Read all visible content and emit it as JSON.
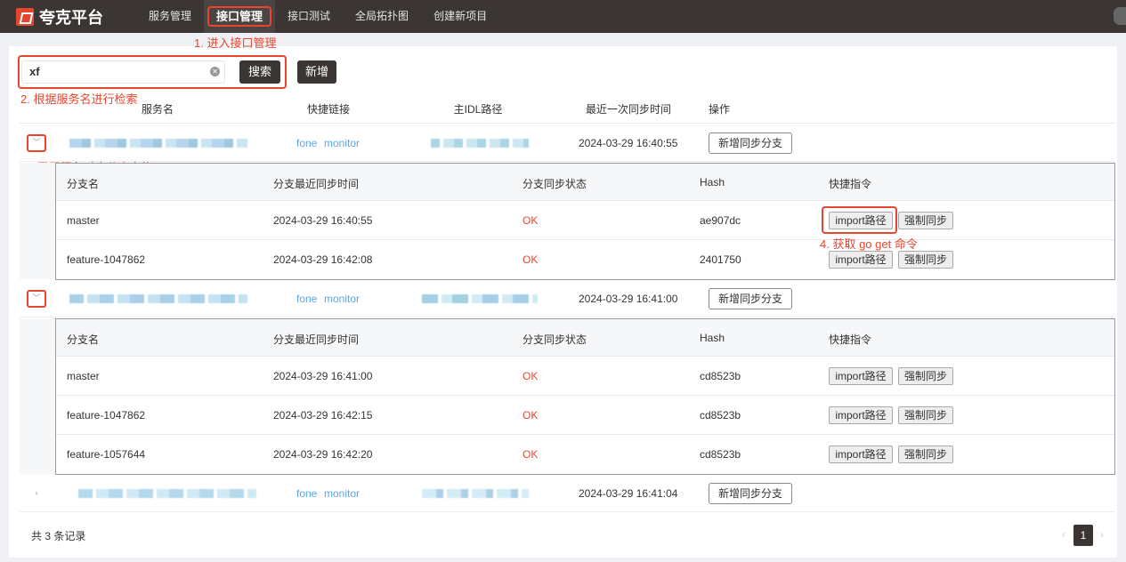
{
  "nav": {
    "brand": "夸克平台",
    "items": [
      {
        "label": "服务管理",
        "active": false
      },
      {
        "label": "接口管理",
        "active": true
      },
      {
        "label": "接口测试",
        "active": false
      },
      {
        "label": "全局拓扑图",
        "active": false
      },
      {
        "label": "创建新项目",
        "active": false
      }
    ]
  },
  "annotations": {
    "step1": "1. 进入接口管理",
    "step2": "2. 根据服务名进行检索",
    "step3": "3. 展开服务对应分支产物",
    "step4": "4. 获取 go get 命令",
    "color": "#e8452f"
  },
  "search": {
    "value": "xf",
    "search_label": "搜索",
    "add_label": "新增"
  },
  "table": {
    "headers": [
      "服务名",
      "快捷链接",
      "主IDL路径",
      "最近一次同步时间",
      "操作"
    ],
    "action_label": "新增同步分支",
    "link1": "fone",
    "link2": "monitor",
    "services": [
      {
        "expanded": true,
        "last_sync": "2024-03-29 16:40:55",
        "branches": [
          {
            "name": "master",
            "time": "2024-03-29 16:40:55",
            "status": "OK",
            "hash": "ae907dc"
          },
          {
            "name": "feature-1047862",
            "time": "2024-03-29 16:42:08",
            "status": "OK",
            "hash": "2401750"
          }
        ]
      },
      {
        "expanded": true,
        "last_sync": "2024-03-29 16:41:00",
        "branches": [
          {
            "name": "master",
            "time": "2024-03-29 16:41:00",
            "status": "OK",
            "hash": "cd8523b"
          },
          {
            "name": "feature-1047862",
            "time": "2024-03-29 16:42:15",
            "status": "OK",
            "hash": "cd8523b"
          },
          {
            "name": "feature-1057644",
            "time": "2024-03-29 16:42:20",
            "status": "OK",
            "hash": "cd8523b"
          }
        ]
      },
      {
        "expanded": false,
        "last_sync": "2024-03-29 16:41:04",
        "branches": []
      }
    ]
  },
  "subtable": {
    "headers": [
      "分支名",
      "分支最近同步时间",
      "分支同步状态",
      "Hash",
      "快捷指令"
    ],
    "import_label": "import路径",
    "force_label": "强制同步"
  },
  "footer": {
    "total": "共 3 条记录",
    "page": "1"
  }
}
